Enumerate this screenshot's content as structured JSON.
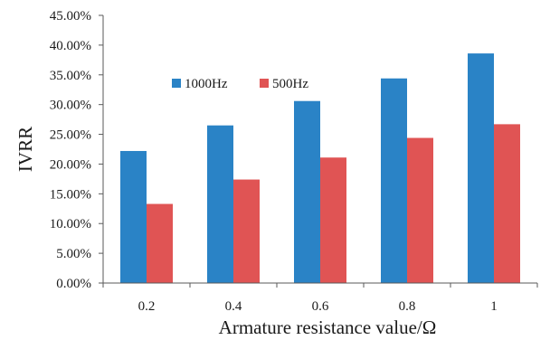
{
  "chart_data": {
    "type": "bar",
    "title": "",
    "xlabel": "Armature  resistance value/Ω",
    "ylabel": "IVRR",
    "categories": [
      "0.2",
      "0.4",
      "0.6",
      "0.8",
      "1"
    ],
    "ylim": [
      0,
      45
    ],
    "ytick_step": 5,
    "y_tick_labels": [
      "0.00%",
      "5.00%",
      "10.00%",
      "15.00%",
      "20.00%",
      "25.00%",
      "30.00%",
      "35.00%",
      "40.00%",
      "45.00%"
    ],
    "grid": false,
    "legend_position": "top-left inside",
    "series": [
      {
        "name": "1000Hz",
        "color": "#2a83c6",
        "values": [
          22.2,
          26.5,
          30.6,
          34.4,
          38.6
        ]
      },
      {
        "name": "500Hz",
        "color": "#e05454",
        "values": [
          13.3,
          17.4,
          21.1,
          24.4,
          26.7
        ]
      }
    ]
  }
}
